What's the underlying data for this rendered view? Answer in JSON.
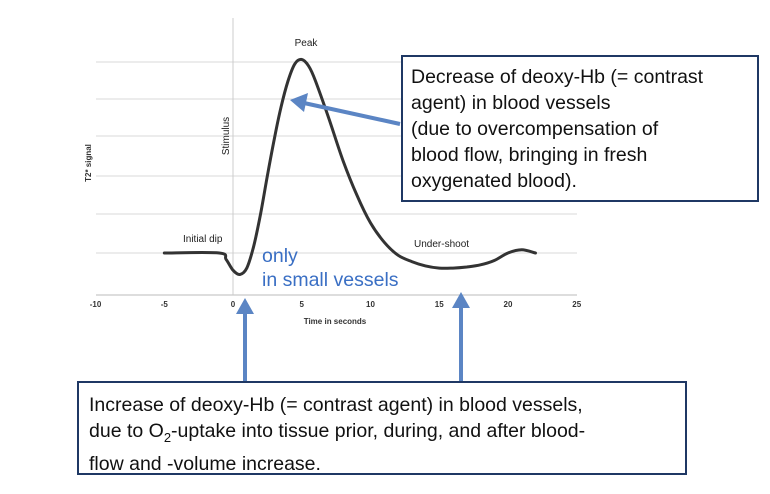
{
  "chart_data": {
    "type": "line",
    "title": "",
    "xlabel": "Time in seconds",
    "ylabel": "T2* signal",
    "xlim": [
      -10,
      25
    ],
    "ylim": [
      -1,
      9
    ],
    "x_ticks": [
      "-10",
      "-5",
      "0",
      "5",
      "10",
      "15",
      "20",
      "25"
    ],
    "grid": "horizontal",
    "series": [
      {
        "x": [
          -5,
          -1,
          -0.5,
          0,
          0.5,
          1,
          1.5,
          2,
          2.5,
          3,
          3.5,
          4,
          4.5,
          5,
          5.5,
          6,
          7,
          8,
          9,
          10,
          11,
          12,
          13,
          14,
          15,
          16,
          17,
          18,
          19,
          20,
          21,
          22
        ],
        "y": [
          0,
          0,
          -0.3,
          -0.8,
          -1.0,
          -0.7,
          0.3,
          1.8,
          3.6,
          5.3,
          6.8,
          8.0,
          8.8,
          9.0,
          8.7,
          8.0,
          6.2,
          4.3,
          2.7,
          1.4,
          0.5,
          -0.1,
          -0.4,
          -0.6,
          -0.7,
          -0.7,
          -0.65,
          -0.55,
          -0.35,
          0.0,
          0.15,
          0.0
        ]
      }
    ],
    "annotations": {
      "stimulus": "Stimulus",
      "peak": "Peak",
      "initial_dip": "Initial dip",
      "undershoot": "Under-shoot"
    }
  },
  "notes": {
    "top_box": [
      "Decrease of deoxy-Hb (= contrast",
      "agent) in blood vessels",
      "(due to overcompensation of",
      "blood flow, bringing in fresh",
      "oxygenated blood)."
    ],
    "small_vessels_line1": "only",
    "small_vessels_line2": "in small vessels",
    "bottom_box_line1": "Increase of deoxy-Hb (= contrast agent) in blood vessels,",
    "bottom_box_line2_a": "due to O",
    "bottom_box_line2_sub": "2",
    "bottom_box_line2_b": "-uptake into tissue prior, during, and after blood-",
    "bottom_box_line3": "flow and -volume increase."
  },
  "colors": {
    "curve": "#333333",
    "arrow": "#5b85c4",
    "box_border": "#1f3864",
    "note_text": "#3a6fc4",
    "grid": "#d9d9d9"
  }
}
